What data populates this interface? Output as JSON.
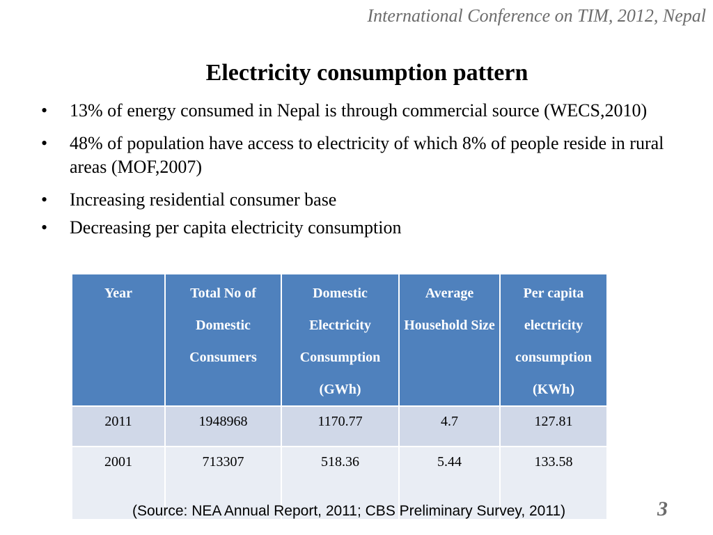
{
  "slide": {
    "header": "International Conference on TIM, 2012, Nepal",
    "title": "Electricity consumption pattern",
    "bullet_marker": "•",
    "bullets": [
      "13% of energy consumed in Nepal is through commercial source (WECS,2010)",
      "48% of population have access to electricity of which 8% of people reside in rural areas (MOF,2007)",
      "Increasing residential consumer  base",
      "Decreasing per capita electricity consumption"
    ],
    "table": {
      "headers": [
        "Year",
        "Total No of Domestic Consumers",
        "Domestic Electricity Consumption (GWh)",
        "Average Household Size",
        "Per capita electricity consumption (KWh)"
      ],
      "rows": [
        [
          "2011",
          "1948968",
          "1170.77",
          "4.7",
          "127.81"
        ],
        [
          "2001",
          "713307",
          "518.36",
          "5.44",
          "133.58"
        ]
      ]
    },
    "source": "(Source: NEA Annual Report, 2011; CBS Preliminary Survey, 2011)",
    "page_number": "3"
  },
  "colors": {
    "table_header": "#4f81bd",
    "row_odd": "#d0d8e8",
    "row_even": "#e9edf4",
    "header_text": "#6b6b6b"
  }
}
